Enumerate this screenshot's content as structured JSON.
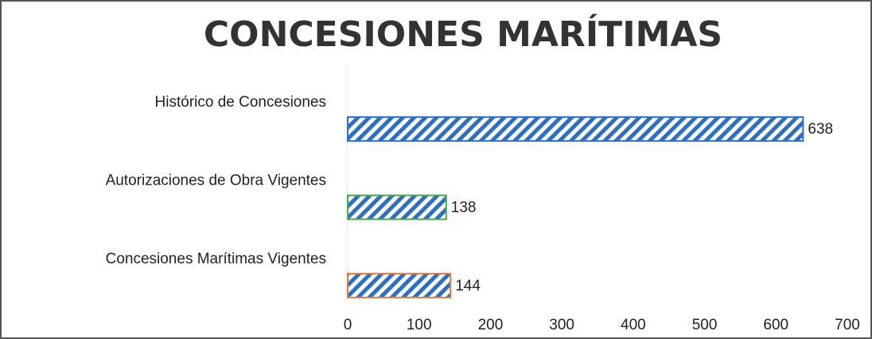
{
  "chart_data": {
    "type": "bar",
    "orientation": "horizontal",
    "title": "CONCESIONES MARÍTIMAS",
    "categories": [
      "Histórico de Concesiones",
      "Autorizaciones de Obra Vigentes",
      "Concesiones Marítimas Vigentes"
    ],
    "values": [
      638,
      138,
      144
    ],
    "colors": [
      "#2e6fbd",
      "#4aa84a",
      "#e07b3c"
    ],
    "pattern_color": "#2f6fc0",
    "xlim": [
      0,
      700
    ],
    "xticks": [
      0,
      100,
      200,
      300,
      400,
      500,
      600,
      700
    ],
    "grid": false
  }
}
